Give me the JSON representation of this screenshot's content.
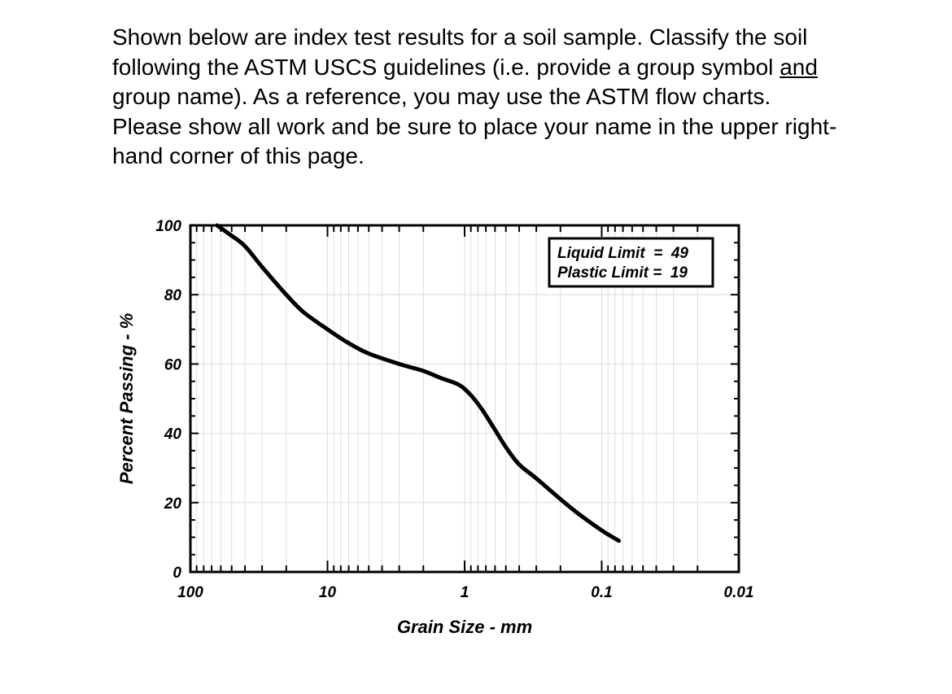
{
  "prompt": {
    "part1": "Shown below are index test results for a soil sample.  Classify the soil following the ASTM USCS guidelines (i.e. provide a group symbol ",
    "underlined": "and",
    "part2": " group name).  As a reference, you may use the ASTM flow charts.  Please show all work and be sure to place your name in the upper right-hand corner of this page."
  },
  "limits_box": {
    "liquid_limit": "Liquid Limit  =  49",
    "plastic_limit": "Plastic Limit =  19"
  },
  "chart_data": {
    "type": "line",
    "xlabel": "Grain Size - mm",
    "ylabel": "Percent Passing - %",
    "x_scale": "log",
    "x_reversed": true,
    "xlim": [
      100,
      0.01
    ],
    "ylim": [
      0,
      100
    ],
    "x_ticks": [
      100,
      10,
      1,
      0.1,
      0.01
    ],
    "x_tick_labels": [
      "100",
      "10",
      "1",
      "0.1",
      "0.01"
    ],
    "y_ticks": [
      0,
      20,
      40,
      60,
      80,
      100
    ],
    "y_tick_labels": [
      "0",
      "20",
      "40",
      "60",
      "80",
      "100"
    ],
    "grid": true,
    "series": [
      {
        "x": [
          64,
          50,
          40,
          30,
          20,
          15,
          10,
          7,
          5,
          3,
          2,
          1.5,
          1.1,
          0.9,
          0.75,
          0.6,
          0.5,
          0.4,
          0.3,
          0.2,
          0.15,
          0.1,
          0.075
        ],
        "y": [
          100,
          97,
          94,
          88,
          80,
          75,
          70,
          66,
          63,
          60,
          58,
          56,
          54,
          51,
          47,
          41,
          36,
          31,
          27,
          21,
          17,
          12,
          9
        ]
      }
    ]
  }
}
